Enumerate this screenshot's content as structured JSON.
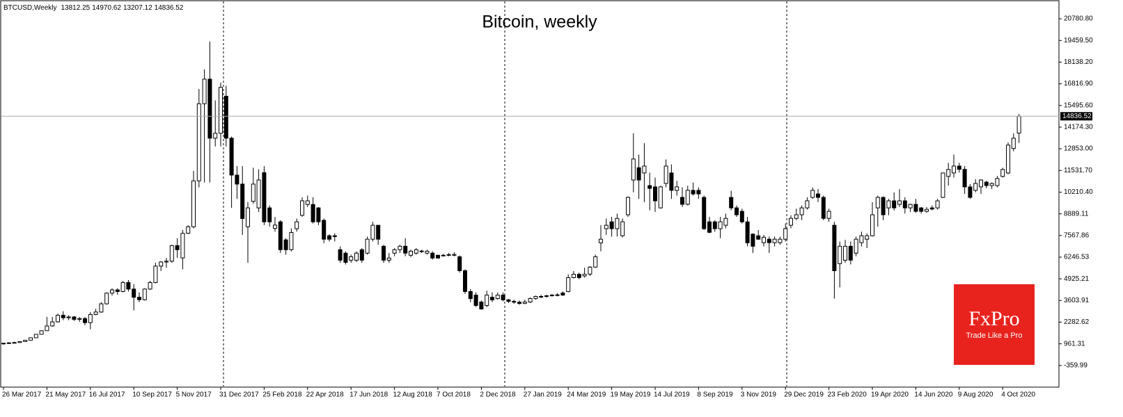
{
  "chart_data": {
    "type": "candlestick",
    "title": "Bitcoin, weekly",
    "symbol": "BTCUSD,Weekly",
    "categories": [
      "26 Mar 2017",
      null,
      null,
      null,
      null,
      null,
      null,
      null,
      "21 May 2017",
      null,
      null,
      null,
      null,
      null,
      null,
      null,
      "16 Jul 2017",
      null,
      null,
      null,
      null,
      null,
      null,
      null,
      "10 Sep 2017",
      null,
      null,
      null,
      null,
      null,
      null,
      null,
      "5 Nov 2017",
      null,
      null,
      null,
      null,
      null,
      null,
      null,
      "31 Dec 2017",
      null,
      null,
      null,
      null,
      null,
      null,
      null,
      "25 Feb 2018",
      null,
      null,
      null,
      null,
      null,
      null,
      null,
      "22 Apr 2018",
      null,
      null,
      null,
      null,
      null,
      null,
      null,
      "17 Jun 2018",
      null,
      null,
      null,
      null,
      null,
      null,
      null,
      "12 Aug 2018",
      null,
      null,
      null,
      null,
      null,
      null,
      null,
      "7 Oct 2018",
      null,
      null,
      null,
      null,
      null,
      null,
      null,
      "2 Dec 2018",
      null,
      null,
      null,
      null,
      null,
      null,
      null,
      "27 Jan 2019",
      null,
      null,
      null,
      null,
      null,
      null,
      null,
      "24 Mar 2019",
      null,
      null,
      null,
      null,
      null,
      null,
      null,
      "19 May 2019",
      null,
      null,
      null,
      null,
      null,
      null,
      null,
      "14 Jul 2019",
      null,
      null,
      null,
      null,
      null,
      null,
      null,
      "8 Sep 2019",
      null,
      null,
      null,
      null,
      null,
      null,
      null,
      "3 Nov 2019",
      null,
      null,
      null,
      null,
      null,
      null,
      null,
      "29 Dec 2019",
      null,
      null,
      null,
      null,
      null,
      null,
      null,
      "23 Feb 2020",
      null,
      null,
      null,
      null,
      null,
      null,
      null,
      "19 Apr 2020",
      null,
      null,
      null,
      null,
      null,
      null,
      null,
      "14 Jun 2020",
      null,
      null,
      null,
      null,
      null,
      null,
      null,
      "9 Aug 2020",
      null,
      null,
      null,
      null,
      null,
      null,
      null,
      "4 Oct 2020",
      null,
      null,
      null
    ],
    "open": [
      960,
      1000,
      1020,
      1040,
      1100,
      1180,
      1330,
      1540,
      1760,
      2050,
      2300,
      2700,
      2550,
      2600,
      2450,
      2500,
      2250,
      2750,
      2900,
      3400,
      4050,
      4250,
      4150,
      4700,
      4300,
      3800,
      3650,
      4300,
      4700,
      5700,
      5950,
      6000,
      6950,
      6200,
      7700,
      8100,
      10900,
      15600,
      17100,
      13500,
      13800,
      16060,
      13500,
      11250,
      10700,
      8100,
      9650,
      9250,
      11400,
      9250,
      8000,
      8400,
      7300,
      6700,
      7980,
      8800,
      9460,
      9460,
      9250,
      8490,
      7550,
      7550,
      6700,
      6490,
      6060,
      6060,
      6700,
      6490,
      7340,
      8190,
      6910,
      6060,
      6490,
      6700,
      6910,
      6360,
      6490,
      6610,
      6490,
      6490,
      6360,
      6360,
      6400,
      6360,
      6270,
      5420,
      4150,
      3930,
      3510,
      3300,
      3800,
      3720,
      3930,
      3640,
      3550,
      3500,
      3420,
      3510,
      3720,
      3850,
      3850,
      3890,
      3930,
      4060,
      4150,
      5000,
      5200,
      5100,
      5210,
      5640,
      7120,
      7980,
      8400,
      7980,
      7550,
      8830,
      10950,
      11700,
      11380,
      10610,
      10530,
      9250,
      10740,
      11380,
      10320,
      9890,
      9470,
      10320,
      10320,
      9890,
      8400,
      8400,
      7980,
      8190,
      9890,
      9250,
      9040,
      8400,
      7650,
      7550,
      7130,
      7340,
      7130,
      7130,
      7340,
      8190,
      8610,
      8830,
      9250,
      9890,
      10100,
      9890,
      8610,
      8190,
      5850,
      6060,
      6910,
      6490,
      7130,
      7340,
      7550,
      9250,
      9890,
      9250,
      9680,
      9465,
      9680,
      9250,
      9465,
      9250,
      9040,
      9250,
      9250,
      9890,
      11170,
      11380,
      11800,
      11600,
      10530,
      10320,
      10530,
      10820,
      10610,
      10610,
      11170,
      11380,
      12870,
      13812.25
    ],
    "high": [
      1010,
      1060,
      1090,
      1120,
      1200,
      1350,
      1560,
      1780,
      2600,
      2600,
      2800,
      2950,
      2700,
      2650,
      2600,
      2600,
      2900,
      3100,
      3500,
      4100,
      4350,
      4350,
      4800,
      4850,
      4600,
      4100,
      4350,
      4800,
      5900,
      6000,
      6200,
      7000,
      7400,
      7900,
      8200,
      11500,
      16500,
      17700,
      19400,
      15800,
      16900,
      16700,
      13600,
      11800,
      11800,
      9600,
      11700,
      11600,
      11800,
      9400,
      8700,
      8500,
      7400,
      8000,
      8600,
      9900,
      10000,
      9900,
      9300,
      8600,
      7650,
      7700,
      6900,
      6600,
      6400,
      6600,
      6800,
      7500,
      8400,
      8200,
      7000,
      6500,
      6800,
      7000,
      7400,
      6700,
      6800,
      6700,
      6700,
      6600,
      6400,
      6450,
      6500,
      6550,
      6350,
      5500,
      4300,
      4100,
      3600,
      4200,
      4100,
      4100,
      4100,
      3700,
      3650,
      3600,
      3650,
      3800,
      3900,
      3950,
      3950,
      4000,
      4050,
      4150,
      5200,
      5400,
      5300,
      5600,
      5700,
      6400,
      8200,
      8600,
      8700,
      8900,
      8600,
      9950,
      13800,
      12500,
      13200,
      11400,
      11100,
      10600,
      12200,
      11900,
      10900,
      10500,
      10600,
      10800,
      10500,
      10000,
      8700,
      8500,
      8700,
      8900,
      10300,
      9400,
      9200,
      8700,
      7700,
      7900,
      7600,
      7500,
      7500,
      7500,
      8300,
      8800,
      9200,
      9400,
      9900,
      10500,
      10400,
      10000,
      9200,
      8400,
      7200,
      7300,
      7200,
      7500,
      7800,
      7700,
      9600,
      10000,
      9950,
      9800,
      10200,
      10400,
      9900,
      9500,
      9800,
      9300,
      9300,
      9400,
      9800,
      11400,
      12000,
      12500,
      12000,
      11800,
      10700,
      11000,
      11000,
      10900,
      10800,
      11200,
      11700,
      13250,
      13800,
      14970.62
    ],
    "low": [
      900,
      960,
      990,
      1010,
      1080,
      1170,
      1310,
      1520,
      1750,
      2000,
      2250,
      2400,
      2400,
      2350,
      2300,
      2100,
      1850,
      2700,
      2850,
      3350,
      3900,
      3950,
      4100,
      4150,
      3000,
      3500,
      3600,
      4250,
      4650,
      5400,
      5600,
      5900,
      6200,
      5500,
      7650,
      8000,
      10500,
      10800,
      10800,
      13000,
      13000,
      13000,
      9250,
      9800,
      7600,
      5900,
      9500,
      9000,
      8200,
      8100,
      7800,
      6500,
      6400,
      6600,
      7800,
      8700,
      9300,
      8300,
      8200,
      7100,
      7200,
      7200,
      5900,
      5800,
      5900,
      5950,
      5900,
      6400,
      7200,
      7000,
      5900,
      5900,
      6300,
      6500,
      6300,
      6250,
      6400,
      6500,
      6400,
      6100,
      6150,
      6300,
      6300,
      6300,
      5300,
      4000,
      3500,
      3200,
      3050,
      3200,
      3500,
      3650,
      3550,
      3450,
      3400,
      3350,
      3380,
      3450,
      3650,
      3750,
      3780,
      3850,
      3850,
      3880,
      4100,
      4950,
      4900,
      5000,
      5100,
      5600,
      6600,
      7600,
      7500,
      7500,
      7450,
      8700,
      10200,
      9800,
      9600,
      9100,
      9000,
      9200,
      10500,
      9800,
      10000,
      9300,
      9400,
      10000,
      9800,
      7900,
      7700,
      7800,
      7400,
      8000,
      9100,
      8700,
      8300,
      6900,
      6500,
      7300,
      6900,
      6500,
      6900,
      7000,
      7200,
      8000,
      8500,
      8500,
      9150,
      9800,
      9600,
      8500,
      8400,
      3720,
      4400,
      5900,
      5800,
      6300,
      6900,
      6800,
      7500,
      8100,
      8500,
      8800,
      9100,
      9300,
      8900,
      9000,
      8950,
      8900,
      8950,
      9100,
      9150,
      9850,
      10600,
      11100,
      11400,
      10100,
      9800,
      10200,
      10100,
      10450,
      10400,
      10500,
      11100,
      11300,
      12700,
      13207.12
    ],
    "close": [
      1000,
      1020,
      1040,
      1100,
      1180,
      1330,
      1540,
      1760,
      2050,
      2300,
      2700,
      2550,
      2600,
      2450,
      2500,
      2250,
      2750,
      2900,
      3400,
      4050,
      4250,
      4150,
      4700,
      4300,
      3800,
      3650,
      4300,
      4700,
      5700,
      5950,
      6000,
      6950,
      6700,
      7700,
      8100,
      10900,
      15600,
      17100,
      13500,
      13800,
      16600,
      13500,
      11250,
      10700,
      8600,
      9250,
      10700,
      10950,
      8400,
      8400,
      8200,
      6700,
      6700,
      7750,
      8400,
      9680,
      9680,
      8400,
      8400,
      7340,
      7340,
      7500,
      6060,
      5930,
      6270,
      6490,
      6060,
      7340,
      8190,
      7340,
      6060,
      6190,
      6700,
      6910,
      6490,
      6610,
      6700,
      6620,
      6610,
      6190,
      6190,
      6350,
      6390,
      6410,
      5420,
      4150,
      3720,
      3300,
      3080,
      3930,
      3640,
      3930,
      3640,
      3550,
      3500,
      3420,
      3510,
      3720,
      3850,
      3850,
      3890,
      3930,
      3950,
      3930,
      5000,
      5200,
      5000,
      5200,
      5640,
      6270,
      7340,
      8190,
      7980,
      8610,
      8400,
      9890,
      12230,
      10950,
      11800,
      10440,
      9680,
      10530,
      11800,
      10320,
      10530,
      9470,
      10320,
      10100,
      10100,
      7980,
      7760,
      7980,
      8400,
      8610,
      9250,
      8830,
      8400,
      7120,
      6910,
      7340,
      7460,
      7130,
      7340,
      7340,
      7980,
      8610,
      8830,
      9250,
      9680,
      10320,
      9890,
      8610,
      9040,
      5420,
      6910,
      6910,
      6060,
      7340,
      7550,
      7550,
      8830,
      9890,
      8830,
      9680,
      9250,
      9680,
      9250,
      9465,
      9040,
      9040,
      9160,
      9180,
      9680,
      11380,
      11590,
      11800,
      11600,
      10530,
      9890,
      10740,
      10950,
      10610,
      10740,
      11040,
      11590,
      13080,
      13500,
      14836.52
    ],
    "ylim": [
      -1680,
      21800
    ],
    "yticks": [
      -359.99,
      961.31,
      2282.62,
      3603.91,
      4925.21,
      6246.53,
      7567.86,
      8889.11,
      {
        "value": 10210.4,
        "label": "10210.40"
      },
      {
        "value": 11531.7,
        "label": "11531.70"
      },
      {
        "value": 12853,
        "label": "12853.00"
      },
      {
        "value": 14174.3,
        "label": "14174.30"
      },
      {
        "value": 15495.6,
        "label": "15495.60"
      },
      {
        "value": 16816.9,
        "label": "16816.90"
      },
      {
        "value": 18138.2,
        "label": "18138.20"
      },
      {
        "value": 19459.5,
        "label": "19459.50"
      },
      {
        "value": 20780.8,
        "label": "20780.80"
      }
    ],
    "up_color": "#ffffff",
    "down_color": "#000000"
  },
  "logo": {
    "brand": "FxPro",
    "tagline": "Trade Like a Pro"
  }
}
